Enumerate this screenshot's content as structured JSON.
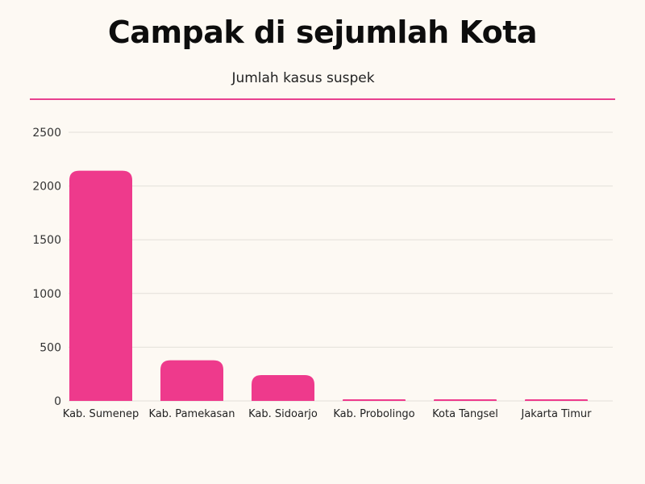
{
  "header": {
    "title": "Campak di sejumlah Kota",
    "subtitle": "Jumlah kasus suspek"
  },
  "colors": {
    "background": "#fdf9f3",
    "bar": "#ee3a8c",
    "divider": "#e8418f",
    "grid": "#e3e0da"
  },
  "chart_data": {
    "type": "bar",
    "title": "Campak di sejumlah Kota",
    "subtitle": "Jumlah kasus suspek",
    "xlabel": "",
    "ylabel": "",
    "categories": [
      "Kab. Sumenep",
      "Kab. Pamekasan",
      "Kab. Sidoarjo",
      "Kab. Probolingo",
      "Kota Tangsel",
      "Jakarta Timur"
    ],
    "values": [
      2142,
      378,
      240,
      3,
      5,
      3
    ],
    "ylim": [
      0,
      2500
    ],
    "yticks": [
      "0",
      "500",
      "1000",
      "1500",
      "2000",
      "2500"
    ],
    "ytick_values": [
      0,
      500,
      1000,
      1500,
      2000,
      2500
    ],
    "grid": true,
    "legend": "none"
  }
}
